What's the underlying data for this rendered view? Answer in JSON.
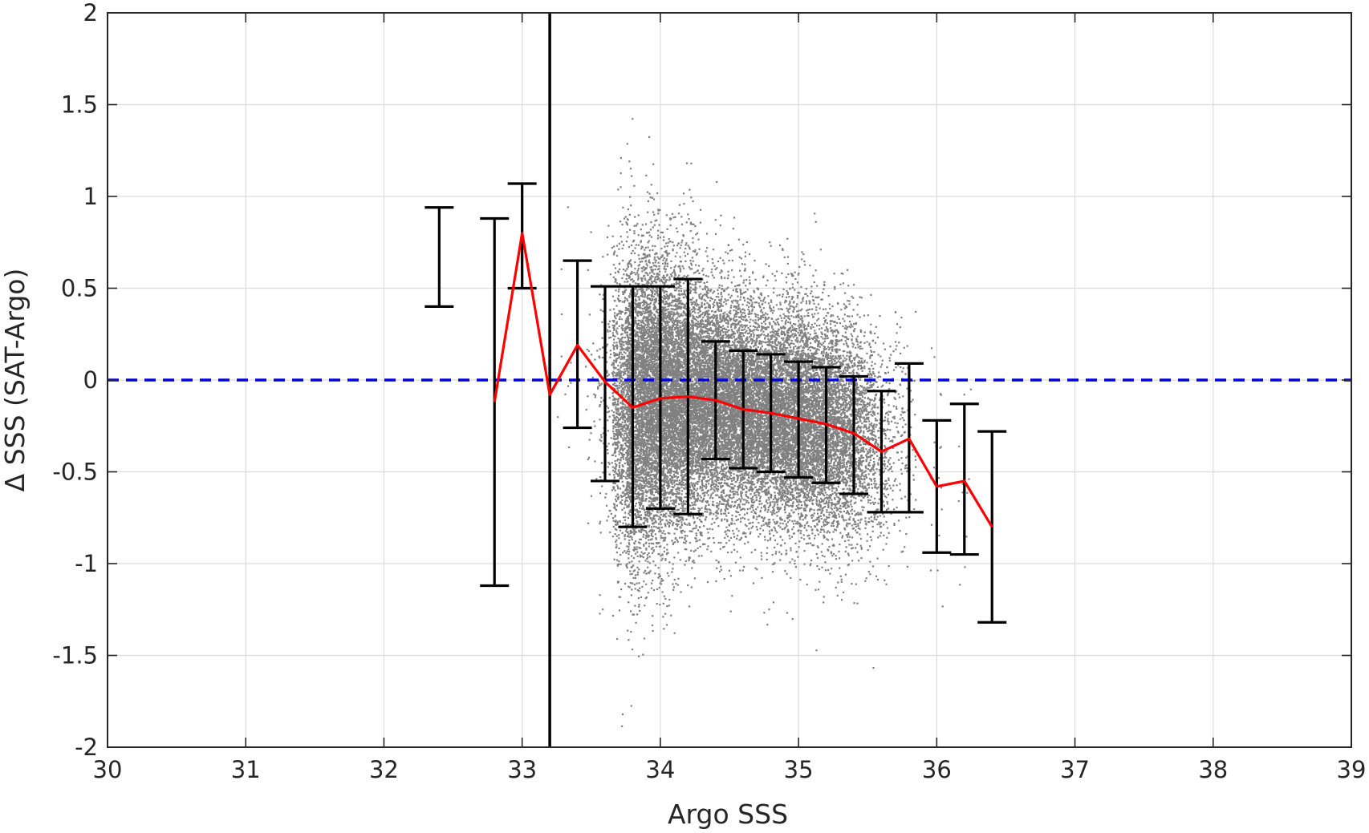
{
  "chart_data": {
    "type": "scatter",
    "title": "",
    "xlabel": "Argo SSS",
    "ylabel": "Δ SSS (SAT-Argo)",
    "xlim": [
      30,
      39
    ],
    "ylim": [
      -2,
      2
    ],
    "x_ticks": [
      30,
      31,
      32,
      33,
      34,
      35,
      36,
      37,
      38,
      39
    ],
    "y_ticks": [
      -2,
      -1.5,
      -1,
      -0.5,
      0,
      0.5,
      1,
      1.5,
      2
    ],
    "x_tick_labels": [
      "30",
      "31",
      "32",
      "33",
      "34",
      "35",
      "36",
      "37",
      "38",
      "39"
    ],
    "y_tick_labels": [
      "-2",
      "-1.5",
      "-1",
      "-0.5",
      "0",
      "0.5",
      "1",
      "1.5",
      "2"
    ],
    "grid": true,
    "legend": "none",
    "colors": {
      "scatter": "#808080",
      "mean_line": "#ff0000",
      "error_bars": "#000000",
      "zero_line": "#0000dd",
      "threshold_line": "#000000",
      "grid": "#dcdcdc",
      "axes": "#262626"
    },
    "scatter_description": "dense cloud of gray points, mostly between Argo SSS 33.6 and 35.8",
    "reference_lines": [
      {
        "orientation": "horizontal",
        "value": 0,
        "style": "dashed",
        "color": "#0000dd"
      },
      {
        "orientation": "vertical",
        "value": 33.2,
        "style": "solid",
        "color": "#000000"
      }
    ],
    "binned_stats": {
      "x": [
        32.4,
        32.8,
        33.0,
        33.2,
        33.4,
        33.6,
        33.8,
        34.0,
        34.2,
        34.4,
        34.6,
        34.8,
        35.0,
        35.2,
        35.4,
        35.6,
        35.8,
        36.0,
        36.2,
        36.4
      ],
      "mean": [
        null,
        -0.12,
        0.8,
        -0.08,
        0.19,
        -0.01,
        -0.15,
        -0.1,
        -0.09,
        -0.11,
        -0.16,
        -0.18,
        -0.21,
        -0.24,
        -0.29,
        -0.39,
        -0.32,
        -0.58,
        -0.55,
        -0.8
      ],
      "upper": [
        0.94,
        0.88,
        1.07,
        null,
        0.65,
        0.51,
        0.51,
        0.51,
        0.55,
        0.21,
        0.16,
        0.14,
        0.1,
        0.07,
        0.02,
        -0.06,
        0.09,
        -0.22,
        -0.13,
        -0.28
      ],
      "lower": [
        0.4,
        -1.12,
        0.5,
        null,
        -0.26,
        -0.55,
        -0.8,
        -0.7,
        -0.73,
        -0.43,
        -0.48,
        -0.5,
        -0.53,
        -0.56,
        -0.62,
        -0.72,
        -0.72,
        -0.94,
        -0.95,
        -1.32
      ]
    }
  }
}
